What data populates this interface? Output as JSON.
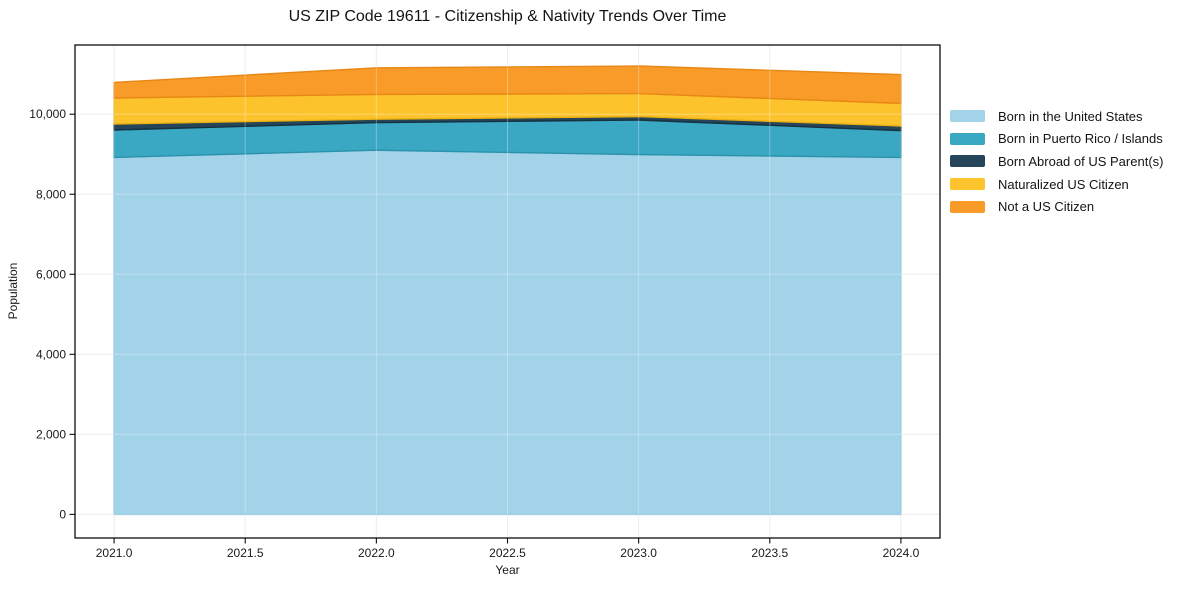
{
  "chart_data": {
    "type": "area",
    "stacked": true,
    "title": "US ZIP Code 19611 - Citizenship & Nativity Trends Over Time",
    "xlabel": "Year",
    "ylabel": "Population",
    "x": [
      2021,
      2022,
      2023,
      2024
    ],
    "series": [
      {
        "name": "Born in the United States",
        "color": "#a3d3e9",
        "edge_color": "#85bfdb",
        "values": [
          8920,
          9100,
          8990,
          8920
        ]
      },
      {
        "name": "Born in Puerto Rico / Islands",
        "color": "#3aa8c3",
        "edge_color": "#2b91ab",
        "values": [
          685,
          690,
          865,
          670
        ]
      },
      {
        "name": "Born Abroad of US Parent(s)",
        "color": "#25465a",
        "edge_color": "#16303f",
        "values": [
          150,
          85,
          85,
          115
        ]
      },
      {
        "name": "Naturalized US Citizen",
        "color": "#fcc32d",
        "edge_color": "#eab011",
        "values": [
          650,
          620,
          575,
          565
        ]
      },
      {
        "name": "Not a US Citizen",
        "color": "#f89b28",
        "edge_color": "#e78816",
        "values": [
          390,
          665,
          690,
          720
        ]
      }
    ],
    "totals": [
      10795,
      11160,
      11205,
      10990
    ],
    "xticks": {
      "values": [
        2021.0,
        2021.5,
        2022.0,
        2022.5,
        2023.0,
        2023.5,
        2024.0
      ],
      "labels": [
        "2021.0",
        "2021.5",
        "2022.0",
        "2022.5",
        "2023.0",
        "2023.5",
        "2024.0"
      ]
    },
    "yticks": {
      "values": [
        0,
        2000,
        4000,
        6000,
        8000,
        10000
      ],
      "labels": [
        "0",
        "2,000",
        "4,000",
        "6,000",
        "8,000",
        "10,000"
      ]
    },
    "xlim": [
      2020.851,
      2024.149
    ],
    "ylim": [
      -590,
      11730
    ],
    "grid": true,
    "legend_position": "outside-right",
    "colors": {
      "grid": "#e7e7e7",
      "spine": "#0d0d0d",
      "tick_label": "#1a1a1a",
      "background": "#ffffff"
    }
  }
}
